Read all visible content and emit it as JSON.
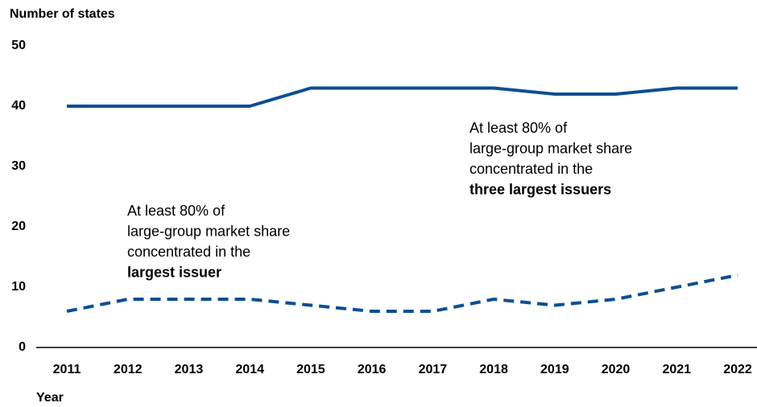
{
  "chart_data": {
    "type": "line",
    "y_label": "Number of states",
    "x_label": "Year",
    "categories": [
      "2011",
      "2012",
      "2013",
      "2014",
      "2015",
      "2016",
      "2017",
      "2018",
      "2019",
      "2020",
      "2021",
      "2022"
    ],
    "series": [
      {
        "color": "#0d4e92",
        "dashed": false,
        "values": [
          40,
          40,
          40,
          40,
          43,
          43,
          43,
          43,
          42,
          42,
          43,
          43
        ]
      },
      {
        "color": "#0d4e92",
        "dashed": true,
        "values": [
          6,
          8,
          8,
          8,
          7,
          6,
          6,
          8,
          7,
          8,
          10,
          12
        ]
      }
    ],
    "annotations": [
      {
        "lines": [
          "At least 80% of",
          "large-group market share",
          "concentrated in the"
        ],
        "bold": "three largest issuers"
      },
      {
        "lines": [
          "At least 80% of",
          "large-group market share",
          "concentrated in the"
        ],
        "bold": "largest issuer"
      }
    ],
    "ylim": [
      0,
      50
    ],
    "yticks": [
      0,
      10,
      20,
      30,
      40,
      50
    ],
    "grid": false
  }
}
